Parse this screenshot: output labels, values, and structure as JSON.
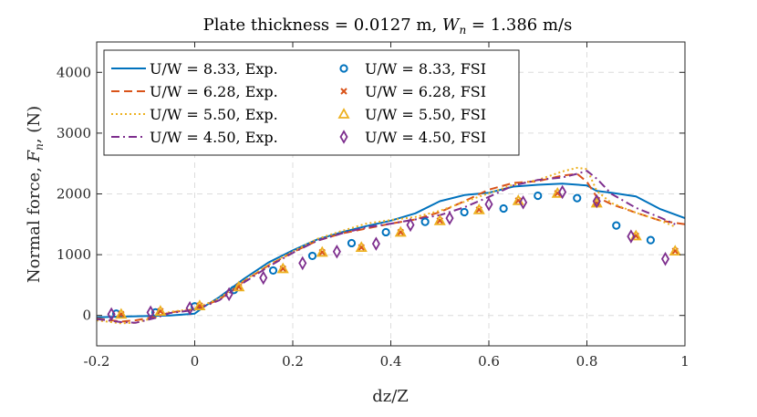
{
  "chart_data": {
    "type": "line",
    "title": {
      "prefix": "Plate thickness = 0.0127 m, ",
      "var_main": "W",
      "var_sub": "n",
      "suffix": " = 1.386 m/s"
    },
    "xlabel": "dz/Z",
    "ylabel": {
      "prefix": "Normal force, ",
      "var_main": "F",
      "var_sub": "n",
      "suffix": ", (N)"
    },
    "xlim": [
      -0.2,
      1.0
    ],
    "ylim": [
      -500,
      4500
    ],
    "xticks": [
      -0.2,
      0,
      0.2,
      0.4,
      0.6,
      0.8,
      1
    ],
    "xtick_labels": [
      "-0.2",
      "0",
      "0.2",
      "0.4",
      "0.6",
      "0.8",
      "1"
    ],
    "yticks": [
      0,
      1000,
      2000,
      3000,
      4000
    ],
    "ytick_labels": [
      "0",
      "1000",
      "2000",
      "3000",
      "4000"
    ],
    "grid": true,
    "legend_position": "top-left",
    "colors": {
      "u833": "#0072BD",
      "u628": "#D95319",
      "u550": "#EDB120",
      "u450": "#7E2F8E"
    },
    "legend": [
      {
        "label": "U/W = 8.33, Exp.",
        "key": "u833",
        "kind": "line",
        "dash": "solid"
      },
      {
        "label": "U/W = 8.33, FSI",
        "key": "u833",
        "kind": "marker",
        "marker": "circle"
      },
      {
        "label": "U/W = 6.28, Exp.",
        "key": "u628",
        "kind": "line",
        "dash": "dashed"
      },
      {
        "label": "U/W = 6.28, FSI",
        "key": "u628",
        "kind": "marker",
        "marker": "x"
      },
      {
        "label": "U/W = 5.50, Exp.",
        "key": "u550",
        "kind": "line",
        "dash": "dotted"
      },
      {
        "label": "U/W = 5.50, FSI",
        "key": "u550",
        "kind": "marker",
        "marker": "triangle"
      },
      {
        "label": "U/W = 4.50, Exp.",
        "key": "u450",
        "kind": "line",
        "dash": "dashdot"
      },
      {
        "label": "U/W = 4.50, FSI",
        "key": "u450",
        "kind": "marker",
        "marker": "diamond"
      }
    ],
    "series": [
      {
        "name": "U/W = 8.33, Exp.",
        "key": "u833",
        "kind": "line",
        "dash": "solid",
        "x": [
          -0.2,
          -0.15,
          -0.1,
          -0.05,
          0.0,
          0.02,
          0.05,
          0.1,
          0.15,
          0.2,
          0.25,
          0.3,
          0.35,
          0.4,
          0.45,
          0.5,
          0.55,
          0.6,
          0.65,
          0.7,
          0.75,
          0.8,
          0.82,
          0.85,
          0.9,
          0.95,
          1.0
        ],
        "y": [
          -30,
          -20,
          -10,
          0,
          30,
          150,
          300,
          600,
          870,
          1070,
          1250,
          1370,
          1470,
          1560,
          1680,
          1880,
          1980,
          2020,
          2120,
          2150,
          2170,
          2140,
          2050,
          2020,
          1960,
          1750,
          1600
        ]
      },
      {
        "name": "U/W = 6.28, Exp.",
        "key": "u628",
        "kind": "line",
        "dash": "dashed",
        "x": [
          -0.2,
          -0.15,
          -0.12,
          -0.08,
          -0.05,
          0.0,
          0.05,
          0.1,
          0.15,
          0.2,
          0.25,
          0.3,
          0.35,
          0.4,
          0.45,
          0.5,
          0.55,
          0.6,
          0.65,
          0.7,
          0.75,
          0.78,
          0.8,
          0.82,
          0.85,
          0.9,
          0.95,
          1.0
        ],
        "y": [
          -50,
          -100,
          -80,
          -20,
          50,
          100,
          260,
          560,
          820,
          1040,
          1230,
          1350,
          1430,
          1510,
          1580,
          1700,
          1880,
          2070,
          2180,
          2210,
          2300,
          2330,
          2200,
          1950,
          1830,
          1690,
          1560,
          1500
        ]
      },
      {
        "name": "U/W = 5.50, Exp.",
        "key": "u550",
        "kind": "line",
        "dash": "dotted",
        "x": [
          -0.2,
          -0.15,
          -0.12,
          -0.08,
          -0.05,
          0.0,
          0.05,
          0.1,
          0.15,
          0.2,
          0.25,
          0.3,
          0.35,
          0.4,
          0.45,
          0.5,
          0.55,
          0.6,
          0.65,
          0.7,
          0.75,
          0.78,
          0.8,
          0.82,
          0.85,
          0.9,
          0.95,
          0.98
        ],
        "y": [
          -80,
          -130,
          -120,
          -30,
          60,
          110,
          280,
          570,
          830,
          1050,
          1260,
          1390,
          1510,
          1570,
          1620,
          1720,
          1870,
          2010,
          2150,
          2230,
          2370,
          2430,
          2410,
          2050,
          1850,
          1690,
          1560,
          1460
        ]
      },
      {
        "name": "U/W = 4.50, Exp.",
        "key": "u450",
        "kind": "line",
        "dash": "dashdot",
        "x": [
          -0.2,
          -0.15,
          -0.12,
          -0.08,
          -0.05,
          0.0,
          0.05,
          0.1,
          0.15,
          0.2,
          0.25,
          0.3,
          0.35,
          0.4,
          0.45,
          0.5,
          0.55,
          0.6,
          0.65,
          0.7,
          0.75,
          0.78,
          0.8,
          0.82,
          0.85,
          0.9,
          0.95,
          0.98
        ],
        "y": [
          -60,
          -110,
          -120,
          -40,
          40,
          90,
          250,
          540,
          800,
          1030,
          1230,
          1350,
          1450,
          1510,
          1580,
          1650,
          1780,
          1950,
          2140,
          2230,
          2270,
          2330,
          2380,
          2250,
          2000,
          1770,
          1610,
          1500
        ]
      },
      {
        "name": "U/W = 8.33, FSI",
        "key": "u833",
        "kind": "marker",
        "marker": "circle",
        "x": [
          -0.16,
          -0.08,
          0.0,
          0.08,
          0.16,
          0.24,
          0.32,
          0.39,
          0.47,
          0.55,
          0.63,
          0.7,
          0.78,
          0.86,
          0.93
        ],
        "y": [
          30,
          50,
          150,
          420,
          740,
          980,
          1190,
          1370,
          1540,
          1700,
          1760,
          1970,
          1930,
          1480,
          1240
        ]
      },
      {
        "name": "U/W = 6.28, FSI",
        "key": "u628",
        "kind": "marker",
        "marker": "x",
        "x": [
          -0.15,
          -0.07,
          0.01,
          0.09,
          0.18,
          0.26,
          0.34,
          0.42,
          0.5,
          0.58,
          0.66,
          0.74,
          0.82,
          0.9,
          0.98
        ],
        "y": [
          20,
          70,
          160,
          470,
          770,
          1040,
          1120,
          1370,
          1560,
          1740,
          1890,
          2010,
          1850,
          1310,
          1060
        ]
      },
      {
        "name": "U/W = 5.50, FSI",
        "key": "u550",
        "kind": "marker",
        "marker": "triangle",
        "x": [
          -0.15,
          -0.07,
          0.01,
          0.09,
          0.18,
          0.26,
          0.34,
          0.42,
          0.5,
          0.58,
          0.66,
          0.74,
          0.82,
          0.9,
          0.98
        ],
        "y": [
          20,
          70,
          160,
          470,
          770,
          1040,
          1120,
          1370,
          1560,
          1740,
          1890,
          2010,
          1850,
          1310,
          1060
        ]
      },
      {
        "name": "U/W = 4.50, FSI",
        "key": "u450",
        "kind": "marker",
        "marker": "diamond",
        "x": [
          -0.17,
          -0.09,
          -0.01,
          0.07,
          0.14,
          0.22,
          0.29,
          0.37,
          0.44,
          0.52,
          0.6,
          0.67,
          0.75,
          0.82,
          0.89,
          0.96
        ],
        "y": [
          20,
          50,
          120,
          350,
          620,
          860,
          1050,
          1180,
          1490,
          1600,
          1830,
          1860,
          2030,
          1880,
          1300,
          930
        ]
      }
    ]
  }
}
